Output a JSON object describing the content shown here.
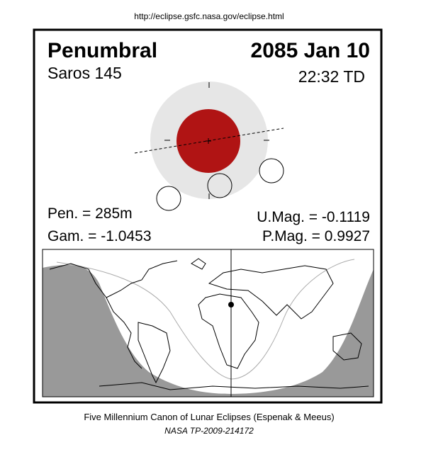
{
  "url": "http://eclipse.gsfc.nasa.gov/eclipse.html",
  "header": {
    "type": "Penumbral",
    "date": "2085 Jan 10",
    "saros": "Saros 145",
    "time": "22:32 TD"
  },
  "parameters": {
    "pen": "Pen. = 285m",
    "gam": "Gam. = -1.0453",
    "umag": "U.Mag. = -0.1119",
    "pmag": "P.Mag. = 0.9927"
  },
  "footer": {
    "canon": "Five Millennium Canon of Lunar Eclipses (Espenak & Meeus)",
    "publication": "NASA TP-2009-214172"
  }
}
